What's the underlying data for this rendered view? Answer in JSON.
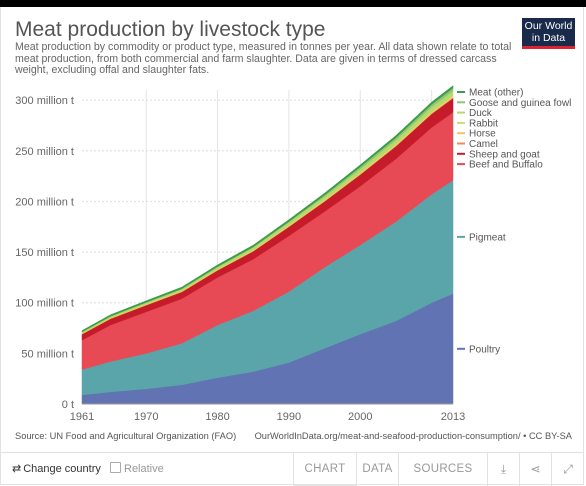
{
  "header": {
    "title": "Meat production by livestock type",
    "subtitle": "Meat production by commodity or product type, measured in tonnes per year. All data shown relate to total meat production, from both commercial and farm slaughter. Data are given in terms of dressed carcass weight, excluding offal and slaughter fats.",
    "logo_line1": "Our World",
    "logo_line2": "in Data"
  },
  "colors": {
    "poultry": "#6273b4",
    "pigmeat": "#5aa5a9",
    "beef": "#e74a54",
    "sheep": "#c61b2a",
    "camel": "#f08a58",
    "horse": "#f6c35c",
    "rabbit": "#d4db6a",
    "duck": "#b7d86c",
    "goose": "#8ec772",
    "meat_other": "#3a9c48"
  },
  "chart_data": {
    "type": "area",
    "stacked": true,
    "title": "Meat production by livestock type",
    "x": [
      1961,
      1965,
      1970,
      1975,
      1980,
      1985,
      1990,
      1995,
      2000,
      2005,
      2010,
      2013
    ],
    "xticks": [
      "1961",
      "1970",
      "1980",
      "1990",
      "2000",
      "2013"
    ],
    "ylim": [
      0,
      310000000
    ],
    "yticks": [
      {
        "value": 0,
        "label": "0 t"
      },
      {
        "value": 50000000,
        "label": "50 million t"
      },
      {
        "value": 100000000,
        "label": "100 million t"
      },
      {
        "value": 150000000,
        "label": "150 million t"
      },
      {
        "value": 200000000,
        "label": "200 million t"
      },
      {
        "value": 250000000,
        "label": "250 million t"
      },
      {
        "value": 300000000,
        "label": "300 million t"
      }
    ],
    "grid": "vertical",
    "legend_position": "right",
    "series": [
      {
        "name": "Poultry",
        "key": "poultry",
        "values": [
          9000000,
          12000000,
          15000000,
          19000000,
          26000000,
          32000000,
          41000000,
          55000000,
          69000000,
          82000000,
          100000000,
          109000000
        ]
      },
      {
        "name": "Pigmeat",
        "key": "pigmeat",
        "values": [
          25000000,
          30000000,
          35000000,
          41000000,
          52000000,
          60000000,
          70000000,
          80000000,
          88000000,
          98000000,
          107000000,
          112000000
        ]
      },
      {
        "name": "Beef and Buffalo",
        "key": "beef",
        "values": [
          29000000,
          36000000,
          41000000,
          44000000,
          47000000,
          51000000,
          55000000,
          55000000,
          58000000,
          62000000,
          66000000,
          67000000
        ]
      },
      {
        "name": "Sheep and goat",
        "key": "sheep",
        "values": [
          6000000,
          6200000,
          6600000,
          6700000,
          7000000,
          7800000,
          9000000,
          10000000,
          11500000,
          12500000,
          13400000,
          14000000
        ]
      },
      {
        "name": "Camel",
        "key": "camel",
        "values": [
          150000,
          160000,
          180000,
          200000,
          220000,
          240000,
          260000,
          280000,
          300000,
          320000,
          340000,
          350000
        ]
      },
      {
        "name": "Horse",
        "key": "horse",
        "values": [
          400000,
          420000,
          440000,
          460000,
          480000,
          500000,
          520000,
          560000,
          600000,
          640000,
          680000,
          700000
        ]
      },
      {
        "name": "Rabbit",
        "key": "rabbit",
        "values": [
          300000,
          330000,
          370000,
          420000,
          500000,
          600000,
          800000,
          900000,
          1100000,
          1300000,
          1600000,
          1700000
        ]
      },
      {
        "name": "Duck",
        "key": "duck",
        "values": [
          1000000,
          1200000,
          1400000,
          1600000,
          1900000,
          2300000,
          2700000,
          3200000,
          3600000,
          3900000,
          4200000,
          4400000
        ]
      },
      {
        "name": "Goose and guinea fowl",
        "key": "goose",
        "values": [
          400000,
          450000,
          500000,
          550000,
          600000,
          700000,
          900000,
          1300000,
          2000000,
          2300000,
          2600000,
          2800000
        ]
      },
      {
        "name": "Meat (other)",
        "key": "meat_other",
        "values": [
          1200000,
          1300000,
          1400000,
          1500000,
          1600000,
          1700000,
          1800000,
          1900000,
          2000000,
          2100000,
          2200000,
          2300000
        ]
      }
    ]
  },
  "footer": {
    "source": "Source: UN Food and Agricultural Organization (FAO)",
    "url": "OurWorldInData.org/meat-and-seafood-production-consumption/ • CC BY-SA",
    "change_country": "Change country",
    "relative": "Relative",
    "tab_chart": "CHART",
    "tab_data": "DATA",
    "tab_sources": "SOURCES"
  }
}
